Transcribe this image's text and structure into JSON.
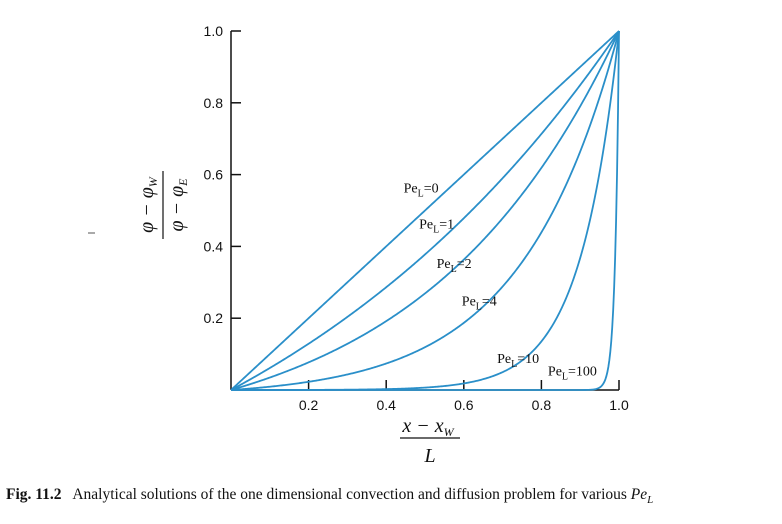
{
  "chart_data": {
    "type": "line",
    "title": "",
    "xlabel": {
      "numerator": "x − x",
      "numerator_sub": "W",
      "denominator": "L"
    },
    "ylabel": {
      "numerator": "φ − φ",
      "numerator_sub": "W",
      "denominator": "φ − φ",
      "denominator_sub": "E"
    },
    "xlim": [
      0,
      1
    ],
    "ylim": [
      0,
      1
    ],
    "xticks": [
      "0.2",
      "0.4",
      "0.6",
      "0.8",
      "1.0"
    ],
    "yticks": [
      "0.2",
      "0.4",
      "0.6",
      "0.8",
      "1.0"
    ],
    "grid": false,
    "line_color": "#2a8fc9",
    "series": [
      {
        "name": "0",
        "pe": 0,
        "label_text": "Pe",
        "label_sub": "L",
        "label_value": "=0"
      },
      {
        "name": "1",
        "pe": 1,
        "label_text": "Pe",
        "label_sub": "L",
        "label_value": "=1"
      },
      {
        "name": "2",
        "pe": 2,
        "label_text": "Pe",
        "label_sub": "L",
        "label_value": "=2"
      },
      {
        "name": "4",
        "pe": 4,
        "label_text": "Pe",
        "label_sub": "L",
        "label_value": "=4"
      },
      {
        "name": "10",
        "pe": 10,
        "label_text": "Pe",
        "label_sub": "L",
        "label_value": "=10"
      },
      {
        "name": "100",
        "pe": 100,
        "label_text": "Pe",
        "label_sub": "L",
        "label_value": "=100"
      }
    ]
  },
  "caption": {
    "number": "Fig. 11.2",
    "text": "Analytical solutions of the one dimensional convection and diffusion problem for various",
    "variable": "Pe",
    "variable_sub": "L"
  }
}
